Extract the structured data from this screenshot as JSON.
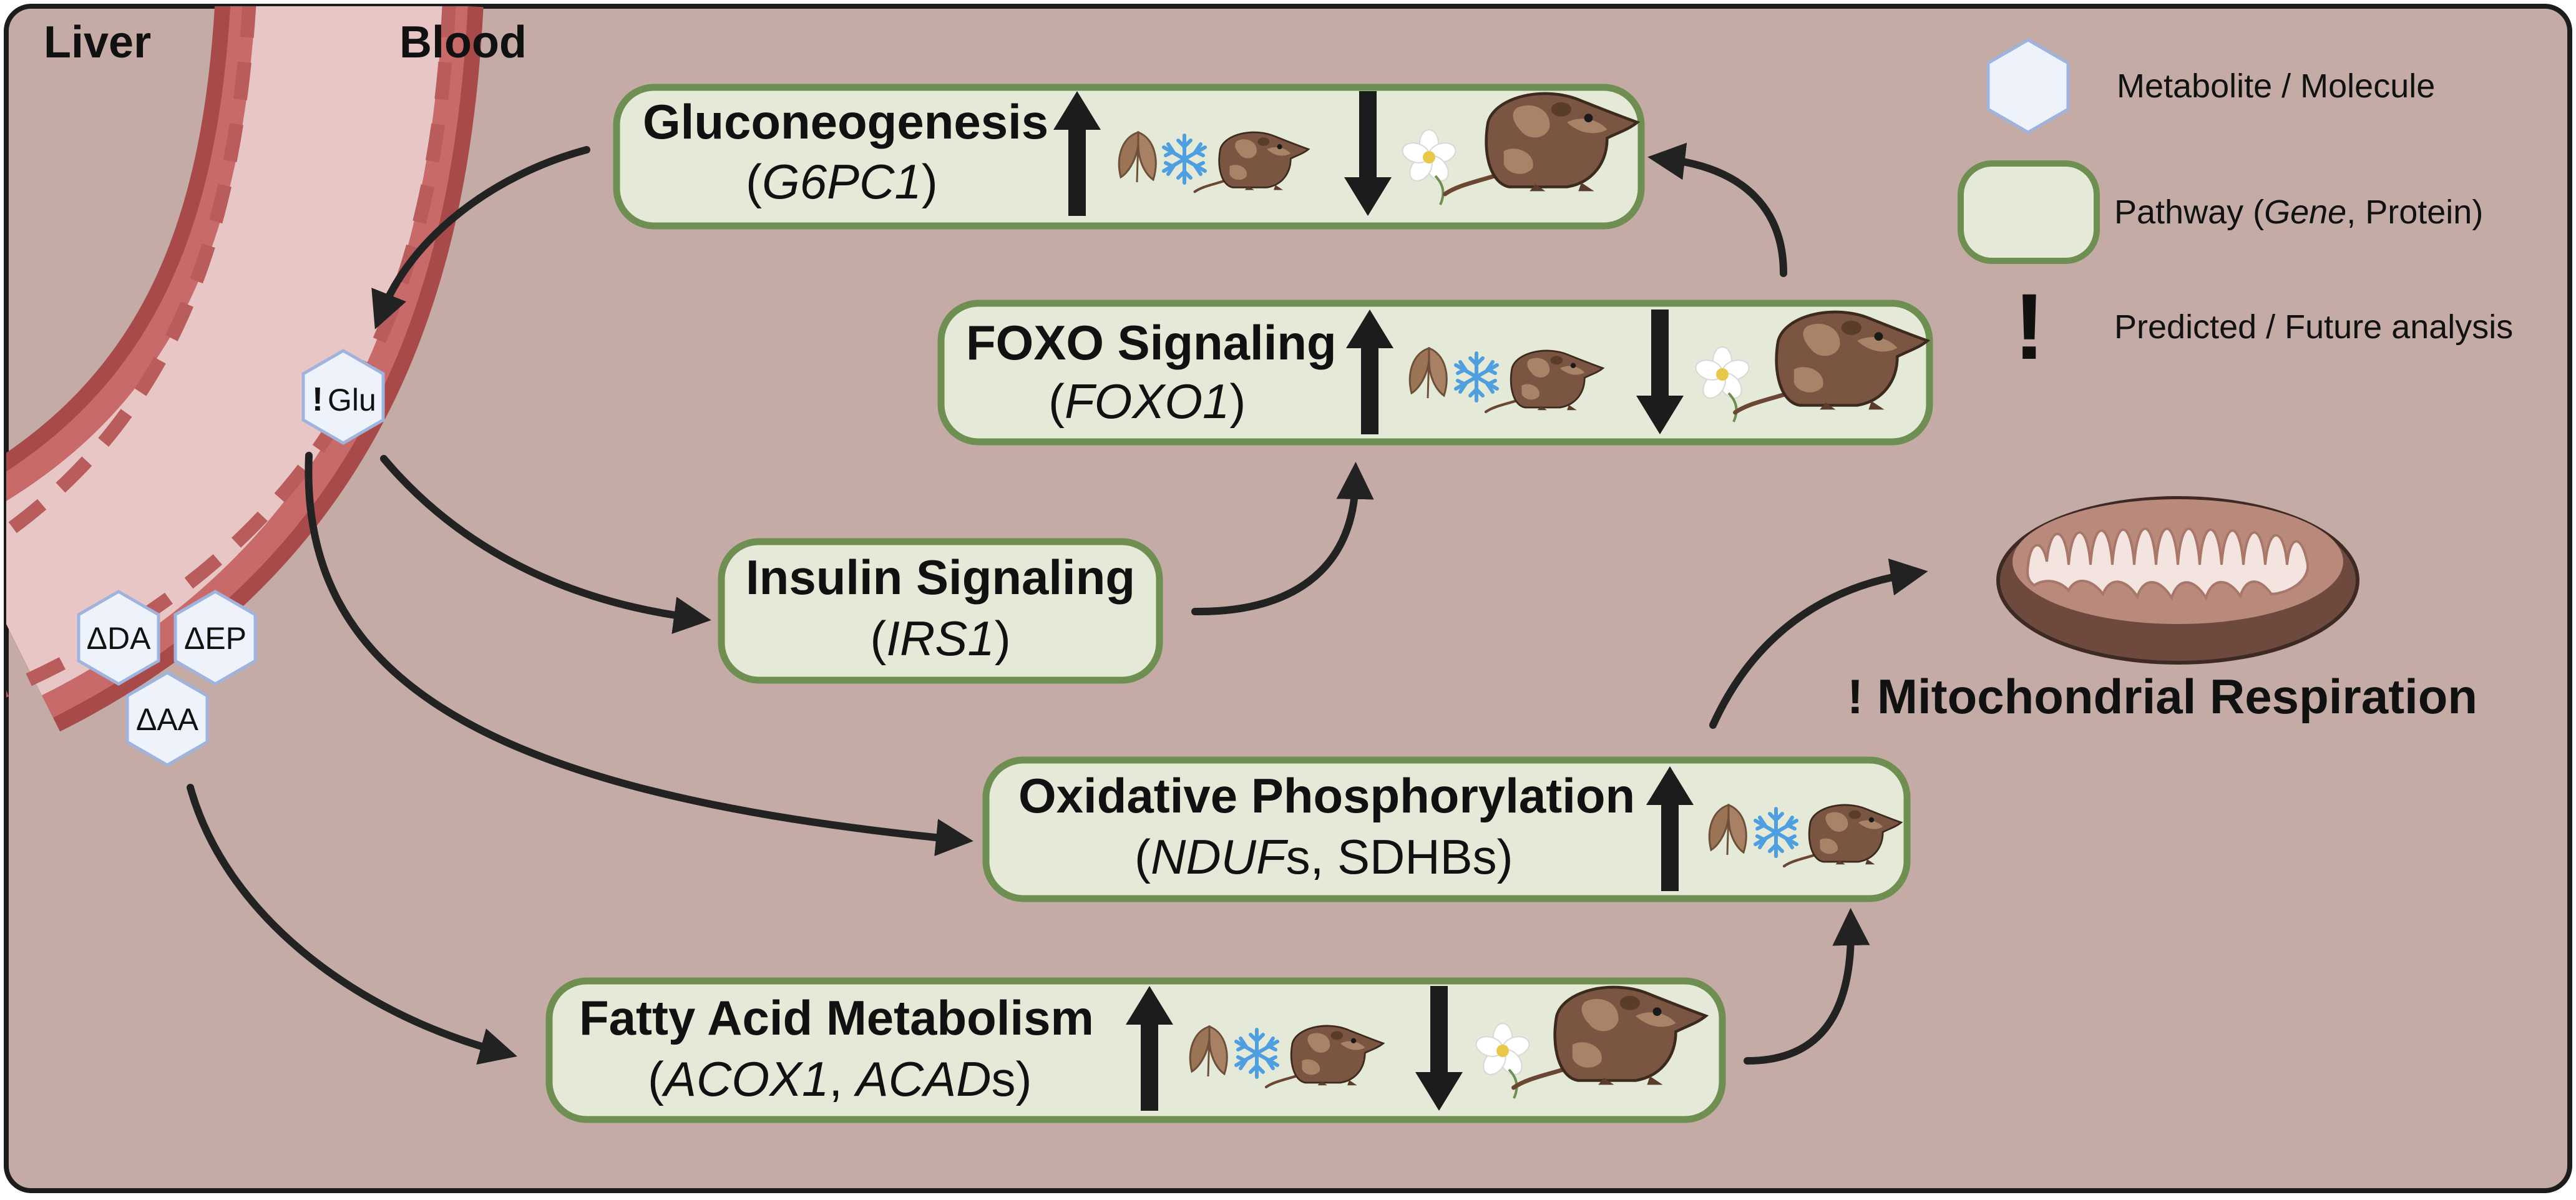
{
  "regions": {
    "liver": "Liver",
    "blood": "Blood"
  },
  "legend": {
    "metabolite": "Metabolite / Molecule",
    "pathway_pre": "Pathway (",
    "pathway_gene": "Gene",
    "pathway_post": ", Protein)",
    "predicted_mark": "!",
    "predicted": "Predicted / Future analysis"
  },
  "metabolites": {
    "glu_mark": "!",
    "glu": "Glu",
    "da": "ΔDA",
    "ep": "ΔEP",
    "aa": "ΔAA"
  },
  "pathways": {
    "gluconeogenesis": {
      "title": "Gluconeogenesis",
      "gene_open": "(",
      "gene": "G6PC1",
      "gene_close": ")"
    },
    "foxo": {
      "title": "FOXO Signaling",
      "gene_open": "(",
      "gene": "FOXO1",
      "gene_close": ")"
    },
    "insulin": {
      "title": "Insulin Signaling",
      "gene_open": "(",
      "gene": "IRS1",
      "gene_close": ")"
    },
    "oxphos": {
      "title": "Oxidative Phosphorylation",
      "gene_open": "(",
      "gene": "NDUF",
      "gene_mid": "s, SDHBs)"
    },
    "fatty": {
      "title": "Fatty Acid Metabolism",
      "gene_open": "(",
      "gene1": "ACOX1",
      "gene_sep": ", ",
      "gene2": "ACAD",
      "gene_close": "s)"
    }
  },
  "mitochondria": {
    "mark": "!",
    "label": "Mitochondrial Respiration"
  },
  "colors": {
    "background": "#c4aba5",
    "pathway_fill": "#e4ead7",
    "pathway_stroke": "#6f8f52",
    "vessel_wall": "#a94a4a",
    "vessel_inner": "#e8c6c6",
    "hexagon_fill": "#eef3fb",
    "hexagon_stroke": "#9fb3dc",
    "arrow": "#222222",
    "shrew_brown": "#7a5541",
    "snowflake": "#4f9fe0"
  },
  "icons": [
    "up-arrow-icon",
    "down-arrow-icon",
    "leaf-icon",
    "snowflake-icon",
    "shrew-icon",
    "flower-icon",
    "mitochondrion-icon",
    "hexagon-icon"
  ]
}
